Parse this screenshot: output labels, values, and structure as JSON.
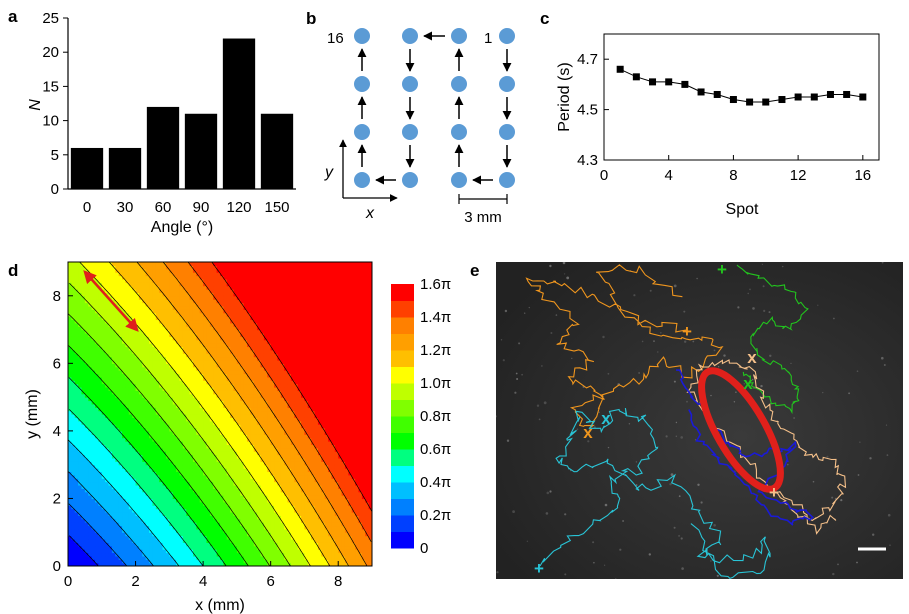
{
  "panels": {
    "a": "a",
    "b": "b",
    "c": "c",
    "d": "d",
    "e": "e"
  },
  "chart_data": [
    {
      "panel": "a",
      "type": "bar",
      "categories": [
        "0",
        "30",
        "60",
        "90",
        "120",
        "150"
      ],
      "values": [
        6,
        6,
        12,
        11,
        22,
        11
      ],
      "xlabel": "Angle (°)",
      "ylabel": "N",
      "ylim": [
        0,
        25
      ],
      "yticks": [
        0,
        5,
        10,
        15,
        20,
        25
      ],
      "bar_color": "#000000"
    },
    {
      "panel": "b",
      "type": "diagram",
      "label_16": "16",
      "label_1": "1",
      "x_label": "x",
      "y_label": "y",
      "scale_label": "3 mm",
      "grid_cols": 4,
      "grid_rows": 4,
      "spot_color": "#5b9bd5",
      "path_order": "1 at top-right, snake down/up to 16 at top-left"
    },
    {
      "panel": "c",
      "type": "line",
      "x": [
        1,
        2,
        3,
        4,
        5,
        6,
        7,
        8,
        9,
        10,
        11,
        12,
        13,
        14,
        15,
        16
      ],
      "values": [
        4.66,
        4.63,
        4.61,
        4.61,
        4.6,
        4.57,
        4.56,
        4.54,
        4.53,
        4.53,
        4.54,
        4.55,
        4.55,
        4.56,
        4.56,
        4.55
      ],
      "xlabel": "Spot",
      "ylabel": "Period (s)",
      "xlim": [
        0,
        17
      ],
      "ylim": [
        4.3,
        4.8
      ],
      "xticks": [
        0,
        4,
        8,
        12,
        16
      ],
      "yticks": [
        "4.3",
        "4.5",
        "4.7"
      ],
      "marker": "square"
    },
    {
      "panel": "d",
      "type": "heatmap",
      "xlabel": "x (mm)",
      "ylabel": "y (mm)",
      "xlim": [
        0,
        9
      ],
      "ylim": [
        0,
        9
      ],
      "xticks": [
        0,
        2,
        4,
        6,
        8
      ],
      "yticks": [
        0,
        2,
        4,
        6,
        8
      ],
      "colorbar_ticks": [
        "0",
        "0.2π",
        "0.4π",
        "0.6π",
        "0.8π",
        "1.0π",
        "1.2π",
        "1.4π",
        "1.6π"
      ],
      "levels": 16,
      "vmax": 1.6,
      "arrow_color": "#e0201b",
      "palette": [
        "#0000ff",
        "#0040ff",
        "#0080ff",
        "#00bfff",
        "#00ffff",
        "#00ff80",
        "#00ff00",
        "#40ff00",
        "#80ff00",
        "#bfff00",
        "#ffff00",
        "#ffbf00",
        "#ff9f00",
        "#ff8000",
        "#ff4000",
        "#ff0000"
      ]
    },
    {
      "panel": "e",
      "type": "image",
      "markers": {
        "plus": "+",
        "cross": "x"
      },
      "trace_colors": {
        "orange": "#f0961e",
        "cyan": "#29c4d6",
        "green": "#22c41e",
        "peach": "#f5c08a",
        "blue": "#1a1ad6",
        "red": "#e0201b"
      },
      "background": "#2d2d2d"
    }
  ]
}
